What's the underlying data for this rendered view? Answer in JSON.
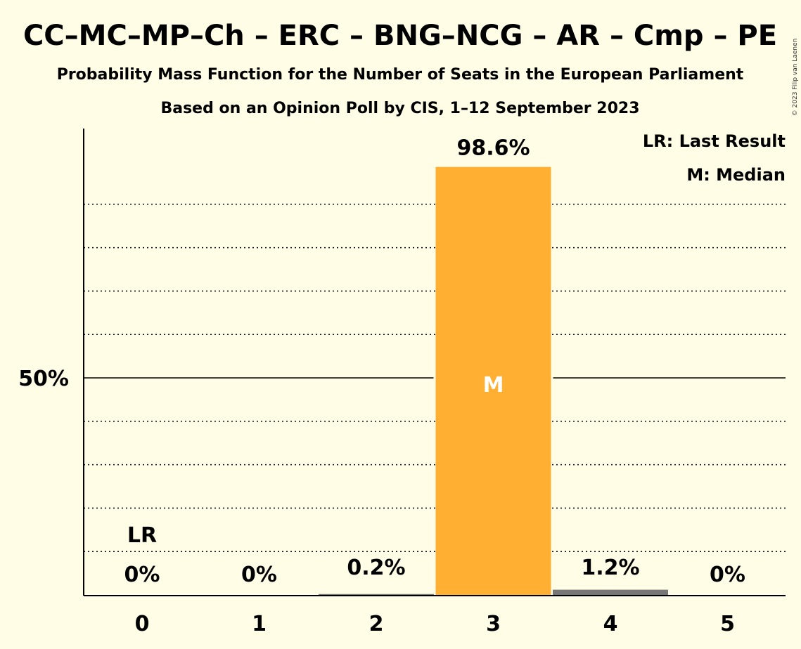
{
  "chart_data": {
    "type": "bar",
    "title": "CC–MC–MP–Ch – ERC – BNG–NCG – AR – Cmp – PE",
    "subtitle": "Probability Mass Function for the Number of Seats in the European Parliament",
    "subtitle2": "Based on an Opinion Poll by CIS, 1–12 September 2023",
    "copyright": "© 2023 Filip van Laenen",
    "categories": [
      "0",
      "1",
      "2",
      "3",
      "4",
      "5"
    ],
    "values": [
      0,
      0,
      0.2,
      98.6,
      1.2,
      0
    ],
    "value_labels": [
      "0%",
      "0%",
      "0.2%",
      "98.6%",
      "1.2%",
      "0%"
    ],
    "ylim": [
      0,
      100
    ],
    "y_ticks": [
      {
        "value": 50,
        "label": "50%"
      }
    ],
    "grid": "dotted every 10%",
    "last_result": {
      "category": "0",
      "label": "LR"
    },
    "median": {
      "category": "3",
      "label": "M"
    },
    "legend": {
      "placement": "top-right",
      "entries": [
        "LR: Last Result",
        "M: Median"
      ]
    },
    "colors": {
      "background": "#FFFDE6",
      "median_bar": "#FFB033",
      "other_bar": "#777777",
      "text": "#111111"
    }
  }
}
